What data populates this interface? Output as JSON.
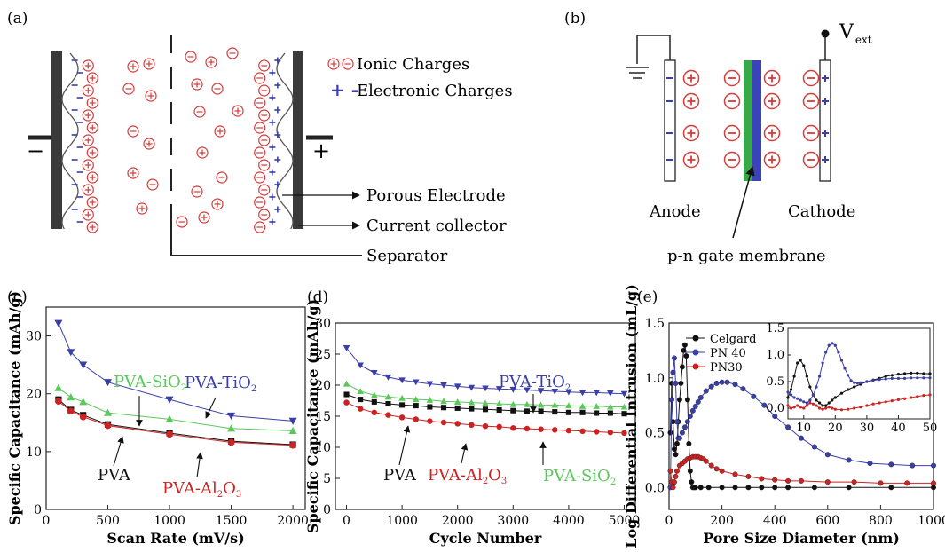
{
  "panels": {
    "a": {
      "label": "(a)",
      "legend": [
        {
          "symbols": "⊕⊖",
          "text": "Ionic Charges"
        },
        {
          "symbols": "+ -",
          "text": "Electronic Charges"
        }
      ],
      "terminals": {
        "negative": "−",
        "positive": "+"
      },
      "callouts": [
        "Porous Electrode",
        "Current collector",
        "Separator"
      ]
    },
    "b": {
      "label": "(b)",
      "vext_main": "V",
      "vext_sub": "ext",
      "anode": "Anode",
      "cathode": "Cathode",
      "membrane": "p-n gate membrane"
    },
    "c": {
      "label": "(c)"
    },
    "d": {
      "label": "(d)"
    },
    "e": {
      "label": "(e)"
    }
  },
  "chart_data": [
    {
      "id": "c",
      "type": "line",
      "xlabel": "Scan Rate (mV/s)",
      "ylabel": "Specific Capacitance (mAh/g)",
      "xlim": [
        0,
        2100
      ],
      "ylim": [
        0,
        35
      ],
      "xticks": [
        0,
        500,
        1000,
        1500,
        2000
      ],
      "yticks": [
        0,
        10,
        20,
        30
      ],
      "x": [
        100,
        200,
        300,
        500,
        1000,
        1500,
        2000
      ],
      "series": [
        {
          "name": "PVA-TiO2",
          "label_main": "PVA-TiO",
          "label_sub": "2",
          "color": "#3a3fa8",
          "marker": "triangle-down",
          "values": [
            32.2,
            27.2,
            25.0,
            22.0,
            19.0,
            16.2,
            15.3
          ]
        },
        {
          "name": "PVA-SiO2",
          "label_main": "PVA-SiO",
          "label_sub": "2",
          "color": "#5cc85c",
          "marker": "triangle-up",
          "values": [
            21.0,
            19.4,
            18.6,
            16.7,
            15.6,
            14.0,
            13.6
          ]
        },
        {
          "name": "PVA",
          "label_main": "PVA",
          "label_sub": "",
          "color": "#111111",
          "marker": "square",
          "values": [
            19.0,
            17.2,
            16.3,
            14.7,
            13.2,
            11.8,
            11.2
          ]
        },
        {
          "name": "PVA-Al2O3",
          "label_main": "PVA-Al",
          "label_sub": "2",
          "label_main2": "O",
          "label_sub2": "3",
          "color": "#cc2222",
          "marker": "circle",
          "values": [
            18.7,
            17.0,
            16.0,
            14.5,
            13.0,
            11.6,
            11.1
          ]
        }
      ]
    },
    {
      "id": "d",
      "type": "line",
      "xlabel": "Cycle Number",
      "ylabel": "Specific Capacitance (mAh/g)",
      "xlim": [
        -200,
        5200
      ],
      "ylim": [
        0,
        30
      ],
      "xticks": [
        0,
        1000,
        2000,
        3000,
        4000,
        5000
      ],
      "yticks": [
        0,
        5,
        10,
        15,
        20,
        25,
        30
      ],
      "x": [
        0,
        250,
        500,
        750,
        1000,
        1250,
        1500,
        1750,
        2000,
        2250,
        2500,
        2750,
        3000,
        3250,
        3500,
        3750,
        4000,
        4250,
        4500,
        4750,
        5000
      ],
      "series": [
        {
          "name": "PVA-TiO2",
          "label_main": "PVA-TiO",
          "label_sub": "2",
          "color": "#3a3fa8",
          "marker": "triangle-down",
          "values": [
            26.0,
            23.2,
            22.0,
            21.3,
            20.8,
            20.5,
            20.2,
            20.0,
            19.8,
            19.6,
            19.5,
            19.4,
            19.3,
            19.2,
            19.1,
            19.0,
            18.9,
            18.8,
            18.8,
            18.7,
            18.6
          ]
        },
        {
          "name": "PVA-SiO2",
          "label_main": "PVA-SiO",
          "label_sub": "2",
          "color": "#5cc85c",
          "marker": "triangle-up",
          "values": [
            20.2,
            19.0,
            18.4,
            18.1,
            17.9,
            17.7,
            17.6,
            17.4,
            17.3,
            17.2,
            17.1,
            17.0,
            16.9,
            16.9,
            16.8,
            16.8,
            16.7,
            16.6,
            16.6,
            16.5,
            16.5
          ]
        },
        {
          "name": "PVA",
          "label_main": "PVA",
          "label_sub": "",
          "color": "#111111",
          "marker": "square",
          "values": [
            18.5,
            17.7,
            17.3,
            17.0,
            16.8,
            16.7,
            16.5,
            16.4,
            16.3,
            16.2,
            16.1,
            16.0,
            15.9,
            15.8,
            15.8,
            15.7,
            15.6,
            15.6,
            15.5,
            15.5,
            15.4
          ]
        },
        {
          "name": "PVA-Al2O3",
          "label_main": "PVA-Al",
          "label_sub": "2",
          "label_main2": "O",
          "label_sub2": "3",
          "color": "#cc2222",
          "marker": "circle",
          "values": [
            17.2,
            16.2,
            15.6,
            15.2,
            14.8,
            14.5,
            14.2,
            14.0,
            13.8,
            13.6,
            13.4,
            13.3,
            13.1,
            13.0,
            12.9,
            12.8,
            12.7,
            12.6,
            12.5,
            12.4,
            12.3
          ]
        }
      ]
    },
    {
      "id": "e",
      "type": "line",
      "xlabel": "Pore Size Diameter (nm)",
      "ylabel": "Log Differential Intrusion (mL/g)",
      "xlim": [
        0,
        1000
      ],
      "ylim": [
        -0.2,
        1.5
      ],
      "xticks": [
        0,
        200,
        400,
        600,
        800,
        1000
      ],
      "yticks": [
        0.0,
        0.5,
        1.0,
        1.5
      ],
      "legend_position": "top-left",
      "series": [
        {
          "name": "Celgard",
          "color": "#111111",
          "x": [
            5,
            10,
            15,
            20,
            25,
            30,
            35,
            40,
            45,
            50,
            55,
            60,
            65,
            70,
            75,
            80,
            85,
            90,
            95,
            100,
            120,
            150,
            200,
            250,
            300,
            350,
            400,
            450,
            550,
            680,
            840,
            1000
          ],
          "values": [
            0.5,
            0.95,
            0.6,
            0.35,
            0.3,
            0.4,
            0.6,
            0.8,
            0.95,
            1.1,
            1.25,
            1.3,
            1.2,
            0.8,
            0.4,
            0.15,
            0.05,
            0.0,
            0.0,
            0.0,
            0.0,
            0.0,
            0.0,
            0.0,
            0.0,
            0.0,
            0.0,
            0.0,
            0.0,
            0.0,
            0.0,
            0.0
          ]
        },
        {
          "name": "PN 40",
          "color": "#3a3fa8",
          "x": [
            5,
            10,
            15,
            20,
            25,
            30,
            35,
            40,
            50,
            60,
            70,
            80,
            90,
            100,
            110,
            120,
            140,
            160,
            180,
            200,
            220,
            250,
            280,
            320,
            360,
            400,
            450,
            500,
            550,
            600,
            680,
            760,
            840,
            920,
            1000
          ],
          "values": [
            0.0,
            0.8,
            1.05,
            1.18,
            0.95,
            0.6,
            0.45,
            0.45,
            0.5,
            0.55,
            0.6,
            0.65,
            0.7,
            0.74,
            0.78,
            0.82,
            0.88,
            0.92,
            0.95,
            0.96,
            0.96,
            0.94,
            0.9,
            0.83,
            0.75,
            0.65,
            0.55,
            0.45,
            0.37,
            0.3,
            0.25,
            0.22,
            0.21,
            0.2,
            0.2
          ]
        },
        {
          "name": "PN30",
          "color": "#cc2222",
          "x": [
            5,
            10,
            15,
            20,
            25,
            30,
            40,
            50,
            60,
            70,
            80,
            90,
            100,
            110,
            120,
            130,
            140,
            160,
            180,
            200,
            250,
            300,
            350,
            400,
            450,
            500,
            600,
            700,
            800,
            900,
            1000
          ],
          "values": [
            0.15,
            0.05,
            0.0,
            0.05,
            0.1,
            0.15,
            0.2,
            0.22,
            0.24,
            0.26,
            0.27,
            0.28,
            0.28,
            0.28,
            0.27,
            0.26,
            0.24,
            0.2,
            0.17,
            0.15,
            0.12,
            0.1,
            0.08,
            0.07,
            0.06,
            0.06,
            0.05,
            0.05,
            0.04,
            0.04,
            0.04
          ]
        }
      ],
      "inset": {
        "xlim": [
          5,
          50
        ],
        "ylim": [
          -0.2,
          1.5
        ],
        "xticks": [
          10,
          20,
          30,
          40,
          50
        ],
        "yticks": [
          0.0,
          0.5,
          1.0,
          1.5
        ],
        "series": [
          {
            "name": "Celgard",
            "color": "#111111",
            "x": [
              5,
              6,
              7,
              8,
              9,
              10,
              11,
              12,
              13,
              14,
              15,
              16,
              17,
              18,
              19,
              20,
              22,
              24,
              26,
              28,
              30,
              32,
              34,
              36,
              38,
              40,
              42,
              44,
              46,
              48,
              50
            ],
            "values": [
              0.2,
              0.35,
              0.6,
              0.85,
              0.9,
              0.8,
              0.6,
              0.4,
              0.25,
              0.15,
              0.1,
              0.05,
              0.05,
              0.1,
              0.15,
              0.2,
              0.28,
              0.35,
              0.4,
              0.45,
              0.5,
              0.53,
              0.56,
              0.6,
              0.62,
              0.64,
              0.65,
              0.66,
              0.66,
              0.65,
              0.65
            ]
          },
          {
            "name": "PN 40",
            "color": "#3a3fa8",
            "x": [
              5,
              6,
              7,
              8,
              9,
              10,
              11,
              12,
              13,
              14,
              15,
              16,
              17,
              18,
              19,
              20,
              21,
              22,
              23,
              24,
              25,
              26,
              27,
              28,
              30,
              32,
              34,
              36,
              38,
              40,
              42,
              44,
              46,
              48,
              50
            ],
            "values": [
              0.3,
              0.25,
              0.2,
              0.18,
              0.15,
              0.12,
              0.1,
              0.15,
              0.25,
              0.4,
              0.6,
              0.85,
              1.05,
              1.18,
              1.22,
              1.18,
              1.05,
              0.9,
              0.75,
              0.62,
              0.52,
              0.48,
              0.47,
              0.48,
              0.5,
              0.52,
              0.54,
              0.55,
              0.56,
              0.56,
              0.56,
              0.57,
              0.57,
              0.57,
              0.57
            ]
          },
          {
            "name": "PN30",
            "color": "#cc2222",
            "x": [
              5,
              6,
              7,
              8,
              9,
              10,
              11,
              12,
              13,
              14,
              15,
              16,
              17,
              18,
              19,
              20,
              22,
              24,
              26,
              28,
              30,
              32,
              34,
              36,
              38,
              40,
              42,
              44,
              46,
              48,
              50
            ],
            "values": [
              0.05,
              0.0,
              0.02,
              0.05,
              0.02,
              0.0,
              0.05,
              0.1,
              0.08,
              0.05,
              0.0,
              -0.02,
              0.0,
              0.02,
              0.0,
              -0.02,
              -0.03,
              -0.02,
              0.0,
              0.02,
              0.05,
              0.08,
              0.1,
              0.12,
              0.14,
              0.16,
              0.18,
              0.2,
              0.22,
              0.24,
              0.25
            ]
          }
        ]
      }
    }
  ]
}
